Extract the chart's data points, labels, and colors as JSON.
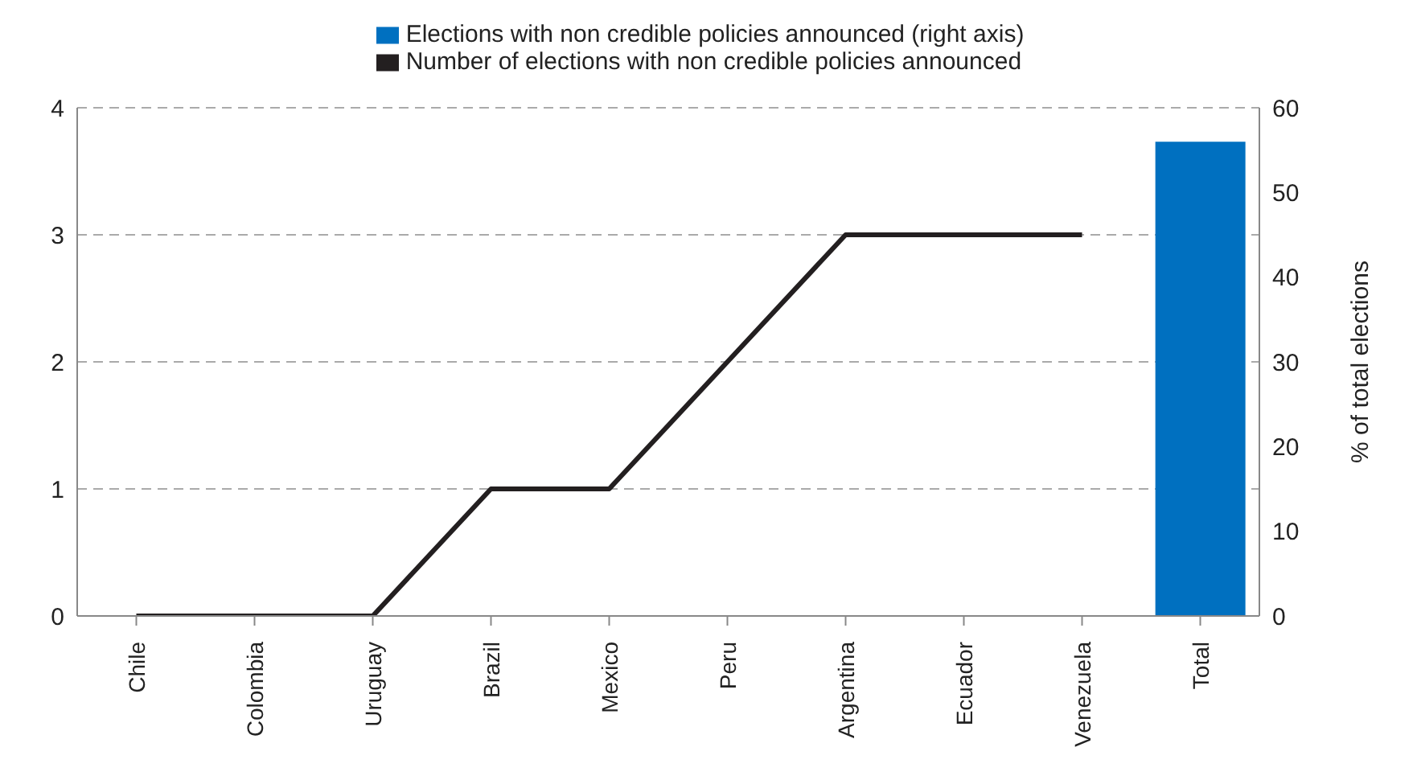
{
  "chart_data": {
    "type": "bar",
    "categories": [
      "Chile",
      "Colombia",
      "Uruguay",
      "Brazil",
      "Mexico",
      "Peru",
      "Argentina",
      "Ecuador",
      "Venezuela",
      "Total"
    ],
    "series": [
      {
        "name": "Elections with non credible policies announced (right axis)",
        "color": "#0070c0",
        "axis": "y2",
        "values": [
          null,
          null,
          null,
          null,
          null,
          null,
          null,
          null,
          null,
          56
        ]
      },
      {
        "name": "Number of elections with non credible policies announced",
        "type": "line",
        "color": "#231f20",
        "values": [
          0,
          0,
          0,
          1,
          1,
          2,
          3,
          3,
          3,
          null
        ]
      }
    ],
    "ylim": [
      0,
      4
    ],
    "yticks": [
      0,
      1,
      2,
      3,
      4
    ],
    "y2lim": [
      0,
      60
    ],
    "y2ticks": [
      0,
      10,
      20,
      30,
      40,
      50,
      60
    ],
    "y2label": "% of total elections",
    "grid": "y",
    "legend": "top",
    "marker": "none",
    "line_style": "solid"
  }
}
